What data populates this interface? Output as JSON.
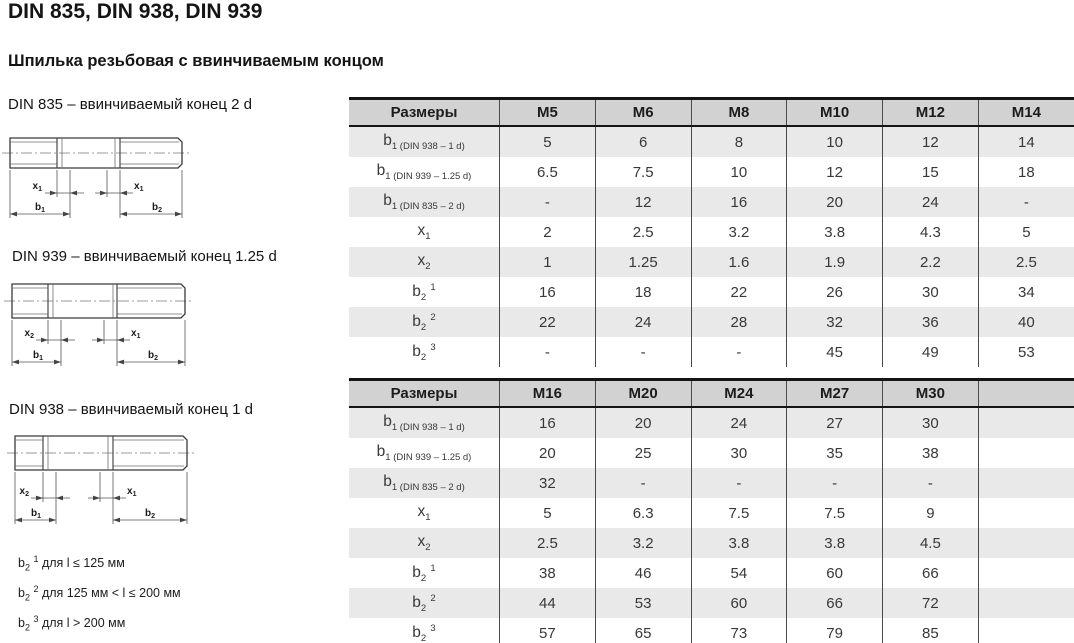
{
  "page": {
    "title": "DIN 835, DIN 938, DIN 939",
    "subtitle": "Шпилька резьбовая с ввинчиваемым концом"
  },
  "colors": {
    "table_header_bg": "#d2d2d2",
    "row_stripe_bg": "#e9e9e9",
    "grid_line": "#4a4a4a",
    "heavy_border": "#141414",
    "text": "#383838"
  },
  "figures": [
    {
      "caption": "DIN 835 – ввинчиваемый конец 2 d",
      "dims": [
        {
          "base": "x",
          "sub": "1"
        },
        {
          "base": "b",
          "sub": "1"
        },
        {
          "base": "x",
          "sub": "1"
        },
        {
          "base": "b",
          "sub": "2"
        }
      ]
    },
    {
      "caption": "DIN 939 – ввинчиваемый конец 1.25 d",
      "dims": [
        {
          "base": "x",
          "sub": "2"
        },
        {
          "base": "b",
          "sub": "1"
        },
        {
          "base": "x",
          "sub": "1"
        },
        {
          "base": "b",
          "sub": "2"
        }
      ]
    },
    {
      "caption": "DIN 938 – ввинчиваемый конец 1 d",
      "dims": [
        {
          "base": "x",
          "sub": "2"
        },
        {
          "base": "b",
          "sub": "1"
        },
        {
          "base": "x",
          "sub": "1"
        },
        {
          "base": "b",
          "sub": "2"
        }
      ]
    }
  ],
  "footnotes": [
    {
      "base": "b",
      "sub": "2",
      "sup": "1",
      "text": "для l ≤ 125 мм"
    },
    {
      "base": "b",
      "sub": "2",
      "sup": "2",
      "text": "для 125 мм < l ≤ 200 мм"
    },
    {
      "base": "b",
      "sub": "2",
      "sup": "3",
      "text": "для l > 200 мм"
    }
  ],
  "tables": [
    {
      "header": [
        "Размеры",
        "M5",
        "M6",
        "M8",
        "M10",
        "M12",
        "M14"
      ],
      "rows": [
        {
          "label": {
            "base": "b",
            "sub": "1",
            "note": "(DIN 938 – 1 d)"
          },
          "values": [
            "5",
            "6",
            "8",
            "10",
            "12",
            "14"
          ]
        },
        {
          "label": {
            "base": "b",
            "sub": "1",
            "note": "(DIN 939 – 1.25 d)"
          },
          "values": [
            "6.5",
            "7.5",
            "10",
            "12",
            "15",
            "18"
          ]
        },
        {
          "label": {
            "base": "b",
            "sub": "1",
            "note": "(DIN 835 – 2 d)"
          },
          "values": [
            "-",
            "12",
            "16",
            "20",
            "24",
            "-"
          ]
        },
        {
          "label": {
            "base": "x",
            "sub": "1"
          },
          "values": [
            "2",
            "2.5",
            "3.2",
            "3.8",
            "4.3",
            "5"
          ]
        },
        {
          "label": {
            "base": "x",
            "sub": "2"
          },
          "values": [
            "1",
            "1.25",
            "1.6",
            "1.9",
            "2.2",
            "2.5"
          ]
        },
        {
          "label": {
            "base": "b",
            "sub": "2",
            "sup": "1"
          },
          "values": [
            "16",
            "18",
            "22",
            "26",
            "30",
            "34"
          ]
        },
        {
          "label": {
            "base": "b",
            "sub": "2",
            "sup": "2"
          },
          "values": [
            "22",
            "24",
            "28",
            "32",
            "36",
            "40"
          ]
        },
        {
          "label": {
            "base": "b",
            "sub": "2",
            "sup": "3"
          },
          "values": [
            "-",
            "-",
            "-",
            "45",
            "49",
            "53"
          ]
        }
      ]
    },
    {
      "header": [
        "Размеры",
        "M16",
        "M20",
        "M24",
        "M27",
        "M30",
        ""
      ],
      "rows": [
        {
          "label": {
            "base": "b",
            "sub": "1",
            "note": "(DIN 938 – 1 d)"
          },
          "values": [
            "16",
            "20",
            "24",
            "27",
            "30",
            ""
          ]
        },
        {
          "label": {
            "base": "b",
            "sub": "1",
            "note": "(DIN 939 – 1.25 d)"
          },
          "values": [
            "20",
            "25",
            "30",
            "35",
            "38",
            ""
          ]
        },
        {
          "label": {
            "base": "b",
            "sub": "1",
            "note": "(DIN 835 – 2 d)"
          },
          "values": [
            "32",
            "-",
            "-",
            "-",
            "-",
            ""
          ]
        },
        {
          "label": {
            "base": "x",
            "sub": "1"
          },
          "values": [
            "5",
            "6.3",
            "7.5",
            "7.5",
            "9",
            ""
          ]
        },
        {
          "label": {
            "base": "x",
            "sub": "2"
          },
          "values": [
            "2.5",
            "3.2",
            "3.8",
            "3.8",
            "4.5",
            ""
          ]
        },
        {
          "label": {
            "base": "b",
            "sub": "2",
            "sup": "1"
          },
          "values": [
            "38",
            "46",
            "54",
            "60",
            "66",
            ""
          ]
        },
        {
          "label": {
            "base": "b",
            "sub": "2",
            "sup": "2"
          },
          "values": [
            "44",
            "53",
            "60",
            "66",
            "72",
            ""
          ]
        },
        {
          "label": {
            "base": "b",
            "sub": "2",
            "sup": "3"
          },
          "values": [
            "57",
            "65",
            "73",
            "79",
            "85",
            ""
          ]
        }
      ]
    }
  ]
}
